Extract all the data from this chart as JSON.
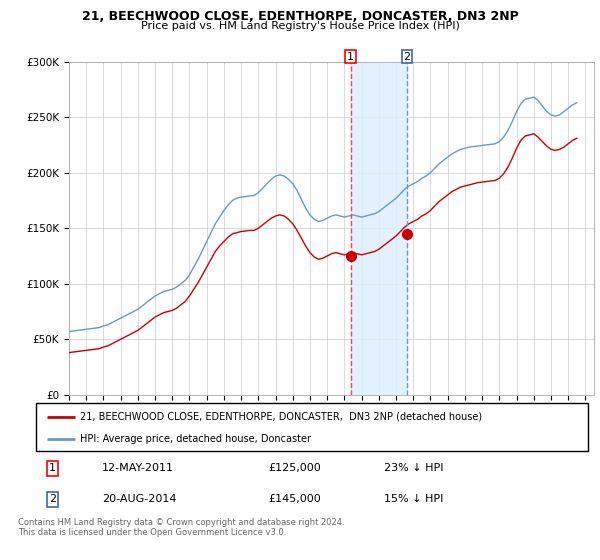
{
  "title": "21, BEECHWOOD CLOSE, EDENTHORPE, DONCASTER, DN3 2NP",
  "subtitle": "Price paid vs. HM Land Registry's House Price Index (HPI)",
  "hpi_color": "#6699CC",
  "price_color": "#CC0000",
  "marker_color_1": "#FF4444",
  "marker_color_2": "#6699CC",
  "highlight_bg": "#DDEEFF",
  "ylim": [
    0,
    300000
  ],
  "yticks": [
    0,
    50000,
    100000,
    150000,
    200000,
    250000,
    300000
  ],
  "ytick_labels": [
    "£0",
    "£50K",
    "£100K",
    "£150K",
    "£200K",
    "£250K",
    "£300K"
  ],
  "transaction1_x": 2011.36,
  "transaction2_x": 2014.64,
  "transaction1_price": 125000,
  "transaction2_price": 145000,
  "transaction1_label": "12-MAY-2011",
  "transaction2_label": "20-AUG-2014",
  "transaction1_hpi": "23% ↓ HPI",
  "transaction2_hpi": "15% ↓ HPI",
  "legend_price_label": "21, BEECHWOOD CLOSE, EDENTHORPE, DONCASTER,  DN3 2NP (detached house)",
  "legend_hpi_label": "HPI: Average price, detached house, Doncaster",
  "footer": "Contains HM Land Registry data © Crown copyright and database right 2024.\nThis data is licensed under the Open Government Licence v3.0.",
  "hpi_data": {
    "years": [
      1995.0,
      1995.25,
      1995.5,
      1995.75,
      1996.0,
      1996.25,
      1996.5,
      1996.75,
      1997.0,
      1997.25,
      1997.5,
      1997.75,
      1998.0,
      1998.25,
      1998.5,
      1998.75,
      1999.0,
      1999.25,
      1999.5,
      1999.75,
      2000.0,
      2000.25,
      2000.5,
      2000.75,
      2001.0,
      2001.25,
      2001.5,
      2001.75,
      2002.0,
      2002.25,
      2002.5,
      2002.75,
      2003.0,
      2003.25,
      2003.5,
      2003.75,
      2004.0,
      2004.25,
      2004.5,
      2004.75,
      2005.0,
      2005.25,
      2005.5,
      2005.75,
      2006.0,
      2006.25,
      2006.5,
      2006.75,
      2007.0,
      2007.25,
      2007.5,
      2007.75,
      2008.0,
      2008.25,
      2008.5,
      2008.75,
      2009.0,
      2009.25,
      2009.5,
      2009.75,
      2010.0,
      2010.25,
      2010.5,
      2010.75,
      2011.0,
      2011.25,
      2011.5,
      2011.75,
      2012.0,
      2012.25,
      2012.5,
      2012.75,
      2013.0,
      2013.25,
      2013.5,
      2013.75,
      2014.0,
      2014.25,
      2014.5,
      2014.75,
      2015.0,
      2015.25,
      2015.5,
      2015.75,
      2016.0,
      2016.25,
      2016.5,
      2016.75,
      2017.0,
      2017.25,
      2017.5,
      2017.75,
      2018.0,
      2018.25,
      2018.5,
      2018.75,
      2019.0,
      2019.25,
      2019.5,
      2019.75,
      2020.0,
      2020.25,
      2020.5,
      2020.75,
      2021.0,
      2021.25,
      2021.5,
      2021.75,
      2022.0,
      2022.25,
      2022.5,
      2022.75,
      2023.0,
      2023.25,
      2023.5,
      2023.75,
      2024.0,
      2024.25,
      2024.5
    ],
    "values": [
      57000,
      57500,
      58000,
      58500,
      59000,
      59500,
      60000,
      60500,
      62000,
      63000,
      65000,
      67000,
      69000,
      71000,
      73000,
      75000,
      77000,
      80000,
      83000,
      86000,
      89000,
      91000,
      93000,
      94000,
      95000,
      97000,
      100000,
      103000,
      108000,
      115000,
      122000,
      130000,
      138000,
      146000,
      154000,
      160000,
      166000,
      171000,
      175000,
      177000,
      178000,
      178500,
      179000,
      179500,
      182000,
      186000,
      190000,
      194000,
      197000,
      198000,
      197000,
      194000,
      190000,
      184000,
      176000,
      168000,
      162000,
      158000,
      156000,
      157000,
      159000,
      161000,
      162000,
      161000,
      160000,
      161000,
      162000,
      161000,
      160000,
      161000,
      162000,
      163000,
      165000,
      168000,
      171000,
      174000,
      177000,
      181000,
      185000,
      188000,
      190000,
      192000,
      195000,
      197000,
      200000,
      204000,
      208000,
      211000,
      214000,
      217000,
      219000,
      221000,
      222000,
      223000,
      223500,
      224000,
      224500,
      225000,
      225500,
      226000,
      228000,
      232000,
      238000,
      246000,
      255000,
      262000,
      266000,
      267000,
      268000,
      265000,
      260000,
      255000,
      252000,
      251000,
      252000,
      255000,
      258000,
      261000,
      263000
    ]
  },
  "price_data": {
    "years": [
      1995.0,
      1995.25,
      1995.5,
      1995.75,
      1996.0,
      1996.25,
      1996.5,
      1996.75,
      1997.0,
      1997.25,
      1997.5,
      1997.75,
      1998.0,
      1998.25,
      1998.5,
      1998.75,
      1999.0,
      1999.25,
      1999.5,
      1999.75,
      2000.0,
      2000.25,
      2000.5,
      2000.75,
      2001.0,
      2001.25,
      2001.5,
      2001.75,
      2002.0,
      2002.25,
      2002.5,
      2002.75,
      2003.0,
      2003.25,
      2003.5,
      2003.75,
      2004.0,
      2004.25,
      2004.5,
      2004.75,
      2005.0,
      2005.25,
      2005.5,
      2005.75,
      2006.0,
      2006.25,
      2006.5,
      2006.75,
      2007.0,
      2007.25,
      2007.5,
      2007.75,
      2008.0,
      2008.25,
      2008.5,
      2008.75,
      2009.0,
      2009.25,
      2009.5,
      2009.75,
      2010.0,
      2010.25,
      2010.5,
      2010.75,
      2011.0,
      2011.25,
      2011.5,
      2011.75,
      2012.0,
      2012.25,
      2012.5,
      2012.75,
      2013.0,
      2013.25,
      2013.5,
      2013.75,
      2014.0,
      2014.25,
      2014.5,
      2014.75,
      2015.0,
      2015.25,
      2015.5,
      2015.75,
      2016.0,
      2016.25,
      2016.5,
      2016.75,
      2017.0,
      2017.25,
      2017.5,
      2017.75,
      2018.0,
      2018.25,
      2018.5,
      2018.75,
      2019.0,
      2019.25,
      2019.5,
      2019.75,
      2020.0,
      2020.25,
      2020.5,
      2020.75,
      2021.0,
      2021.25,
      2021.5,
      2021.75,
      2022.0,
      2022.25,
      2022.5,
      2022.75,
      2023.0,
      2023.25,
      2023.5,
      2023.75,
      2024.0,
      2024.25,
      2024.5
    ],
    "values": [
      38000,
      38500,
      39000,
      39500,
      40000,
      40500,
      41000,
      41500,
      43000,
      44000,
      46000,
      48000,
      50000,
      52000,
      54000,
      56000,
      58000,
      61000,
      64000,
      67000,
      70000,
      72000,
      74000,
      75000,
      76000,
      78000,
      81000,
      84000,
      89000,
      95000,
      101000,
      108000,
      115000,
      122000,
      129000,
      134000,
      138000,
      142000,
      145000,
      146000,
      147000,
      147500,
      148000,
      148000,
      150000,
      153000,
      156000,
      159000,
      161000,
      162000,
      161000,
      158000,
      154000,
      148000,
      141000,
      134000,
      128000,
      124000,
      122000,
      123000,
      125000,
      127000,
      128000,
      127000,
      126000,
      127000,
      127500,
      127000,
      126000,
      127000,
      128000,
      129000,
      131000,
      134000,
      137000,
      140000,
      143000,
      147000,
      151000,
      154000,
      156000,
      158000,
      161000,
      163000,
      166000,
      170000,
      174000,
      177000,
      180000,
      183000,
      185000,
      187000,
      188000,
      189000,
      190000,
      191000,
      191500,
      192000,
      192500,
      193000,
      195000,
      199000,
      205000,
      213000,
      222000,
      229000,
      233000,
      234000,
      235000,
      232000,
      228000,
      224000,
      221000,
      220000,
      221000,
      223000,
      226000,
      229000,
      231000
    ]
  }
}
